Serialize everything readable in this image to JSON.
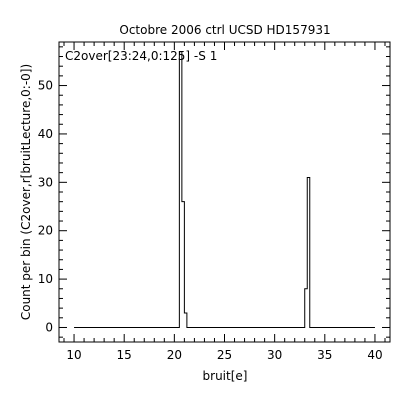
{
  "chart_data": {
    "type": "line",
    "style": "step-histogram",
    "title": "Octobre 2006 ctrl UCSD HD157931",
    "annotation": "C2over[23:24,0:125] -S 1",
    "xlabel": "bruit[e]",
    "ylabel": "Count per bin (C2over,r[bruitLecture,0:-0])",
    "xlim": [
      8.5,
      41.5
    ],
    "ylim": [
      -3,
      59
    ],
    "xticks": [
      10,
      15,
      20,
      25,
      30,
      35,
      40
    ],
    "yticks": [
      0,
      10,
      20,
      30,
      40,
      50
    ],
    "grid": false,
    "line_color": "#000000",
    "series": [
      {
        "x": [
          10.0,
          20.5,
          20.5,
          20.75,
          20.75,
          21.0,
          21.0,
          21.25,
          21.25,
          33.0,
          33.0,
          33.25,
          33.25,
          33.5,
          33.5,
          40.0
        ],
        "y": [
          0,
          0,
          57,
          57,
          26,
          26,
          3,
          3,
          0,
          0,
          8,
          8,
          31,
          31,
          0,
          0
        ]
      }
    ]
  }
}
